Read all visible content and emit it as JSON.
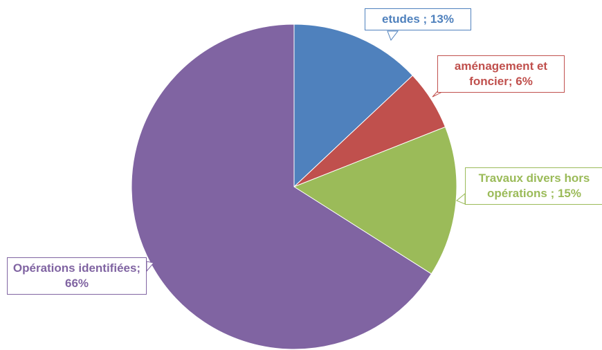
{
  "chart_data": {
    "type": "pie",
    "values": [
      13,
      6,
      15,
      66
    ],
    "value_labels": [
      "etudes ; 13%",
      "aménagement et foncier; 6%",
      "Travaux divers hors opérations ; 15%",
      "Opérations identifiées; 66%"
    ],
    "colors": [
      "#4f81bd",
      "#c0504d",
      "#9bbb59",
      "#8064a2"
    ]
  }
}
